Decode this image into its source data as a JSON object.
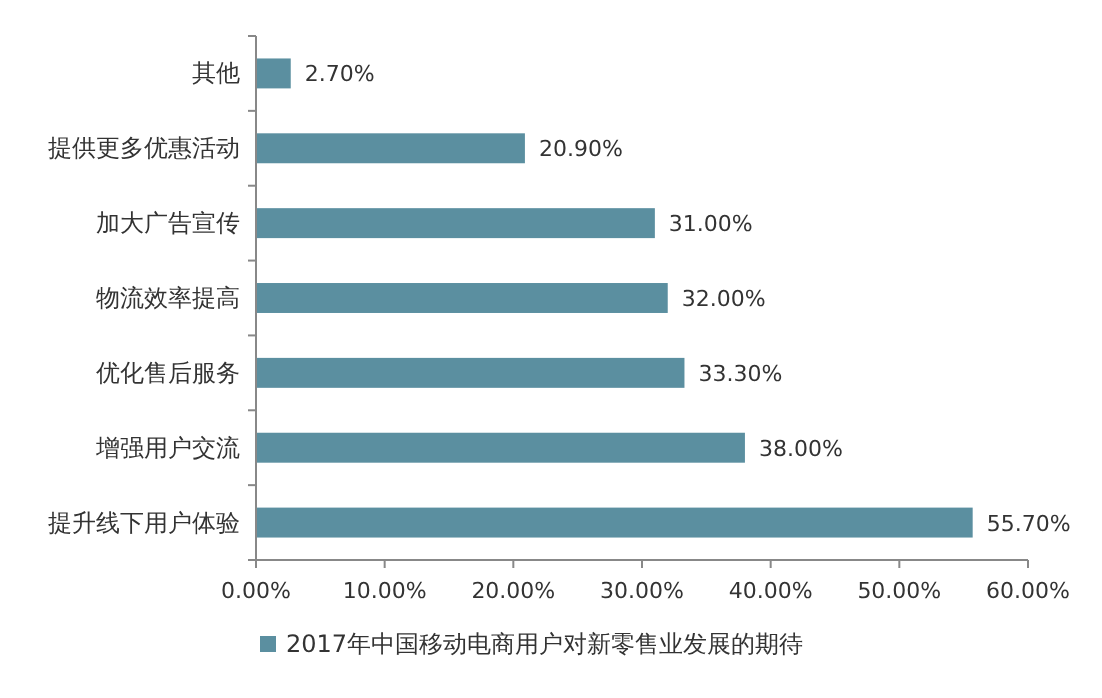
{
  "chart_data": {
    "type": "bar",
    "orientation": "horizontal",
    "categories": [
      "其他",
      "提供更多优惠活动",
      "加大广告宣传",
      "物流效率提高",
      "优化售后服务",
      "增强用户交流",
      "提升线下用户体验"
    ],
    "series": [
      {
        "name": "2017年中国移动电商用户对新零售业发展的期待",
        "color": "#5b8fa0",
        "values": [
          2.7,
          20.9,
          31.0,
          32.0,
          33.3,
          38.0,
          55.7
        ],
        "value_labels": [
          "2.70%",
          "20.90%",
          "31.00%",
          "32.00%",
          "33.30%",
          "38.00%",
          "55.70%"
        ]
      }
    ],
    "xlim": [
      0,
      60
    ],
    "xticks": [
      {
        "value": 0,
        "label": "0.00%"
      },
      {
        "value": 10,
        "label": "10.00%"
      },
      {
        "value": 20,
        "label": "20.00%"
      },
      {
        "value": 30,
        "label": "30.00%"
      },
      {
        "value": 40,
        "label": "40.00%"
      },
      {
        "value": 50,
        "label": "50.00%"
      },
      {
        "value": 60,
        "label": "60.00%"
      }
    ],
    "grid": false,
    "legend": "bottom"
  }
}
